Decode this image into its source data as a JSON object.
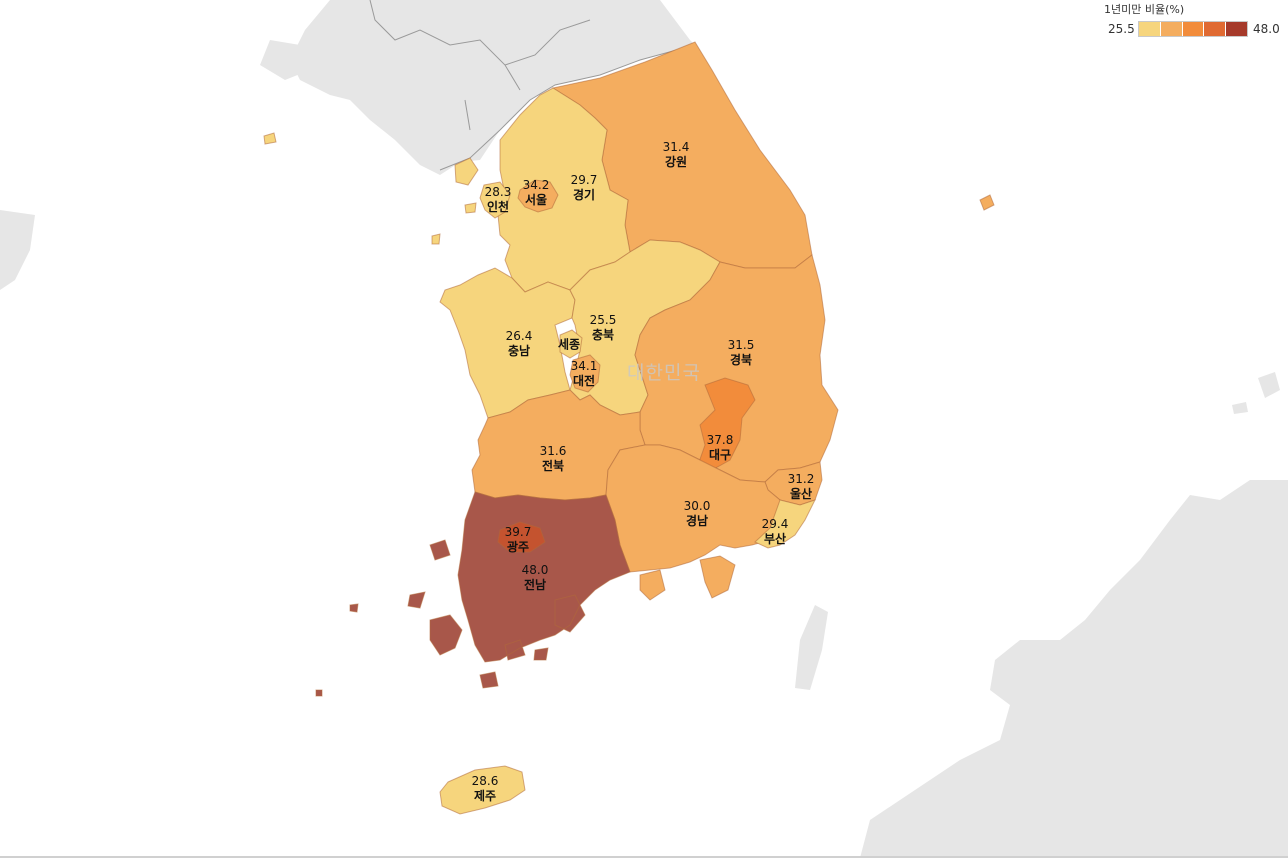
{
  "legend": {
    "title": "1년미만 비율(%)",
    "min": "25.5",
    "max": "48.0",
    "colors": [
      "#f6d57d",
      "#f4ad5f",
      "#f28c3b",
      "#e06a32",
      "#a63a2a"
    ]
  },
  "watermark": "대한민국",
  "regions": [
    {
      "key": "seoul",
      "name": "서울",
      "value": "34.2",
      "fill": "#f4ad5f"
    },
    {
      "key": "incheon",
      "name": "인천",
      "value": "28.3",
      "fill": "#f6d57d"
    },
    {
      "key": "gyeonggi",
      "name": "경기",
      "value": "29.7",
      "fill": "#f6d57d"
    },
    {
      "key": "gangwon",
      "name": "강원",
      "value": "31.4",
      "fill": "#f4ad5f"
    },
    {
      "key": "chungnam",
      "name": "충남",
      "value": "26.4",
      "fill": "#f6d57d"
    },
    {
      "key": "chungbuk",
      "name": "충북",
      "value": "25.5",
      "fill": "#f6d57d"
    },
    {
      "key": "sejong",
      "name": "세종",
      "value": "",
      "fill": "#f6d57d"
    },
    {
      "key": "daejeon",
      "name": "대전",
      "value": "34.1",
      "fill": "#f4ad5f"
    },
    {
      "key": "gyeongbuk",
      "name": "경북",
      "value": "31.5",
      "fill": "#f4ad5f"
    },
    {
      "key": "daegu",
      "name": "대구",
      "value": "37.8",
      "fill": "#f28c3b"
    },
    {
      "key": "jeonbuk",
      "name": "전북",
      "value": "31.6",
      "fill": "#f4ad5f"
    },
    {
      "key": "ulsan",
      "name": "울산",
      "value": "31.2",
      "fill": "#f4ad5f"
    },
    {
      "key": "gyeongnam",
      "name": "경남",
      "value": "30.0",
      "fill": "#f4ad5f"
    },
    {
      "key": "busan",
      "name": "부산",
      "value": "29.4",
      "fill": "#f6d57d"
    },
    {
      "key": "gwangju",
      "name": "광주",
      "value": "39.7",
      "fill": "#c4532f"
    },
    {
      "key": "jeonnam",
      "name": "전남",
      "value": "48.0",
      "fill": "#a8574a"
    },
    {
      "key": "jeju",
      "name": "제주",
      "value": "28.6",
      "fill": "#f6d57d"
    }
  ]
}
